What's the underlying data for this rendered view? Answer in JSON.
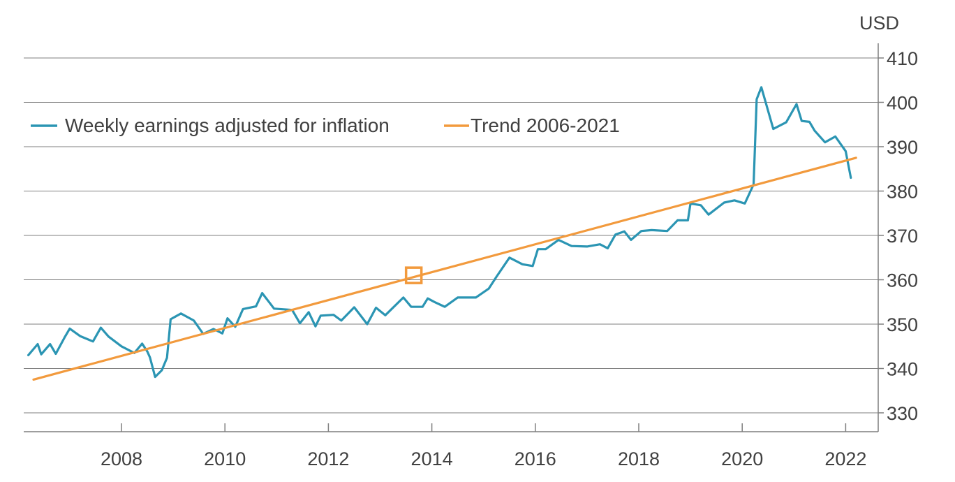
{
  "chart_data": {
    "type": "line",
    "unit_label": "USD",
    "grid": true,
    "legend_placement": "top-left",
    "ylim": [
      325,
      416
    ],
    "xlim": [
      2006.2,
      2022.6
    ],
    "y_ticks": [
      330,
      340,
      350,
      360,
      370,
      380,
      390,
      400,
      410
    ],
    "y_tick_labels": [
      "330",
      "340",
      "350",
      "360",
      "370",
      "380",
      "390",
      "400",
      "410"
    ],
    "x_ticks": [
      2008,
      2010,
      2012,
      2014,
      2016,
      2018,
      2020,
      2022
    ],
    "x_tick_labels": [
      "2008",
      "2010",
      "2012",
      "2014",
      "2016",
      "2018",
      "2020",
      "2022"
    ],
    "series": [
      {
        "name": "Weekly earnings adjusted for inflation",
        "color": "#2B95B3",
        "x": [
          2006.2,
          2006.38,
          2006.45,
          2006.62,
          2006.73,
          2006.9,
          2007.0,
          2007.2,
          2007.45,
          2007.6,
          2007.75,
          2008.0,
          2008.25,
          2008.4,
          2008.5,
          2008.55,
          2008.65,
          2008.78,
          2008.88,
          2008.95,
          2009.15,
          2009.4,
          2009.58,
          2009.78,
          2009.95,
          2010.05,
          2010.2,
          2010.35,
          2010.6,
          2010.72,
          2010.95,
          2011.3,
          2011.45,
          2011.62,
          2011.75,
          2011.85,
          2012.1,
          2012.25,
          2012.5,
          2012.75,
          2012.92,
          2013.1,
          2013.45,
          2013.6,
          2013.82,
          2013.92,
          2014.05,
          2014.25,
          2014.5,
          2014.6,
          2014.85,
          2015.1,
          2015.25,
          2015.5,
          2015.75,
          2015.95,
          2016.05,
          2016.2,
          2016.45,
          2016.7,
          2017.0,
          2017.25,
          2017.4,
          2017.55,
          2017.72,
          2017.85,
          2018.05,
          2018.25,
          2018.55,
          2018.75,
          2018.95,
          2019.0,
          2019.2,
          2019.35,
          2019.65,
          2019.85,
          2020.05,
          2020.22,
          2020.28,
          2020.37,
          2020.6,
          2020.85,
          2021.05,
          2021.15,
          2021.3,
          2021.4,
          2021.6,
          2021.8,
          2022.0,
          2022.1
        ],
        "values": [
          343,
          345.5,
          343.2,
          345.5,
          343.3,
          347,
          349,
          347.3,
          346.1,
          349.2,
          347.2,
          345,
          343.5,
          345.6,
          343.8,
          342.5,
          338.1,
          339.6,
          342.4,
          351.1,
          352.4,
          350.8,
          347.8,
          348.9,
          347.9,
          351.3,
          349.4,
          353.4,
          354,
          357,
          353.5,
          353.2,
          350.2,
          352.7,
          349.5,
          351.9,
          352.1,
          350.8,
          353.8,
          350,
          353.7,
          352,
          356,
          353.9,
          353.9,
          355.8,
          355,
          353.9,
          356,
          356,
          356,
          358,
          360.7,
          365,
          363.5,
          363.1,
          366.9,
          366.9,
          369,
          367.6,
          367.5,
          368,
          367.1,
          370.2,
          370.9,
          369,
          371,
          371.2,
          371,
          373.4,
          373.4,
          377.2,
          376.8,
          374.7,
          377.4,
          377.9,
          377.2,
          381.5,
          400.7,
          403.4,
          394,
          395.5,
          399.6,
          395.8,
          395.6,
          393.6,
          391,
          392.3,
          389,
          383
        ]
      },
      {
        "name": "Trend 2006-2021",
        "color": "#F29A3D",
        "x": [
          2006.3,
          2022.2
        ],
        "values": [
          337.5,
          387.5
        ]
      }
    ],
    "annotations": [
      {
        "type": "square-marker",
        "x": 2013.65,
        "y": 361,
        "color": "#F29A3D"
      }
    ]
  }
}
